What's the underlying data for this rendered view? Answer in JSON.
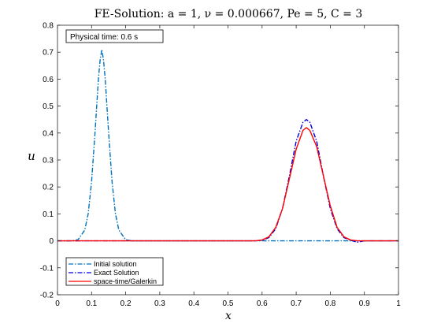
{
  "chart_data": {
    "type": "line",
    "title": "FE-Solution: a = 1, ν = 0.000667, Pe = 5, C = 3",
    "xlabel": "x",
    "ylabel": "u",
    "xlim": [
      0,
      1
    ],
    "ylim": [
      -0.2,
      0.8
    ],
    "x_ticks": [
      "0",
      "0.1",
      "0.2",
      "0.3",
      "0.4",
      "0.5",
      "0.6",
      "0.7",
      "0.8",
      "0.9",
      "1"
    ],
    "y_ticks": [
      "-0.2",
      "-0.1",
      "0",
      "0.1",
      "0.2",
      "0.3",
      "0.4",
      "0.5",
      "0.6",
      "0.7",
      "0.8"
    ],
    "grid": false,
    "legend_position": "bottom-left",
    "annotation": "Physical time: 0.6  s",
    "series": [
      {
        "name": "Initial solution",
        "color": "#0072bd",
        "style": "dash-dot",
        "x": [
          0,
          0.04,
          0.06,
          0.08,
          0.09,
          0.1,
          0.11,
          0.12,
          0.125,
          0.13,
          0.135,
          0.14,
          0.15,
          0.16,
          0.17,
          0.18,
          0.2,
          0.22,
          0.6,
          0.9,
          1
        ],
        "y": [
          0,
          0,
          0.004,
          0.04,
          0.1,
          0.22,
          0.4,
          0.6,
          0.67,
          0.71,
          0.67,
          0.6,
          0.4,
          0.22,
          0.1,
          0.04,
          0.004,
          0,
          0,
          0,
          0
        ]
      },
      {
        "name": "Exact Solution",
        "color": "#0000e0",
        "style": "dash-dot",
        "x": [
          0,
          0.58,
          0.6,
          0.62,
          0.64,
          0.66,
          0.68,
          0.7,
          0.72,
          0.73,
          0.74,
          0.76,
          0.78,
          0.8,
          0.82,
          0.84,
          0.86,
          0.88,
          0.9,
          1
        ],
        "y": [
          0,
          0,
          0.002,
          0.012,
          0.045,
          0.12,
          0.24,
          0.37,
          0.44,
          0.45,
          0.44,
          0.37,
          0.24,
          0.12,
          0.045,
          0.012,
          0.002,
          -0.005,
          0,
          0
        ]
      },
      {
        "name": "space-time/Galerkin",
        "color": "#ff0000",
        "style": "solid",
        "x": [
          0,
          0.58,
          0.6,
          0.62,
          0.64,
          0.66,
          0.68,
          0.7,
          0.72,
          0.73,
          0.74,
          0.76,
          0.78,
          0.8,
          0.82,
          0.84,
          0.86,
          0.88,
          1
        ],
        "y": [
          0,
          0,
          0.003,
          0.015,
          0.05,
          0.12,
          0.23,
          0.34,
          0.41,
          0.42,
          0.41,
          0.35,
          0.24,
          0.13,
          0.05,
          0.015,
          0.003,
          0,
          0
        ]
      }
    ]
  }
}
